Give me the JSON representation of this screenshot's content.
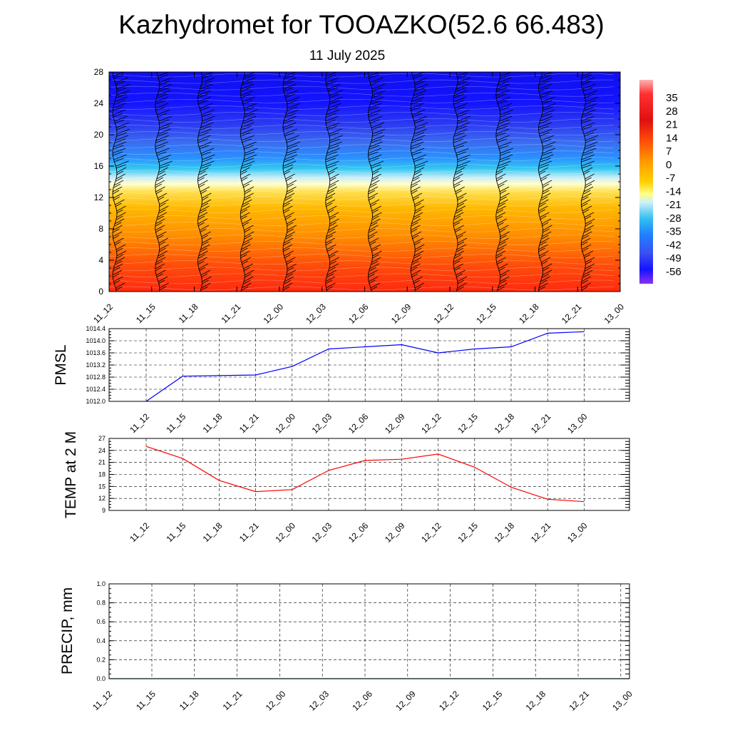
{
  "title": "Kazhydromet for TOOAZKO(52.6 66.483)",
  "subtitle": "11 July 2025",
  "time_labels": [
    "11_12",
    "11_15",
    "11_18",
    "11_21",
    "12_00",
    "12_03",
    "12_06",
    "12_09",
    "12_12",
    "12_15",
    "12_18",
    "12_21",
    "13_00"
  ],
  "chart_data": [
    {
      "type": "heatmap",
      "title": "",
      "ylim": [
        0,
        28
      ],
      "yticks": [
        "0",
        "4",
        "8",
        "12",
        "16",
        "20",
        "24",
        "28"
      ],
      "x_labels": [
        "11_12",
        "11_15",
        "11_18",
        "11_21",
        "12_00",
        "12_03",
        "12_06",
        "12_09",
        "12_12",
        "12_15",
        "12_18",
        "12_21",
        "13_00"
      ],
      "colorbar": {
        "labels": [
          "35",
          "28",
          "21",
          "14",
          "7",
          "0",
          "-7",
          "-14",
          "-21",
          "-28",
          "-35",
          "-42",
          "-49",
          "-56"
        ],
        "range": [
          -60,
          38
        ]
      },
      "temperature_profile": {
        "levels": [
          0,
          4,
          8,
          12,
          13.5,
          16,
          20,
          24,
          28
        ],
        "values": [
          28,
          20,
          10,
          2,
          -14,
          -35,
          -50,
          -56,
          -58
        ]
      },
      "wind_barbs": "shown"
    },
    {
      "type": "line",
      "ylabel": "PMSL",
      "ylim": [
        1012.0,
        1014.4
      ],
      "yticks": [
        "1012.0",
        "1012.4",
        "1012.8",
        "1013.2",
        "1013.6",
        "1014.0",
        "1014.4"
      ],
      "series": [
        {
          "color": "#0000ff",
          "values": [
            1012.0,
            1012.83,
            1012.85,
            1012.87,
            1013.15,
            1013.73,
            1013.8,
            1013.87,
            1013.6,
            1013.73,
            1013.8,
            1014.25,
            1014.3
          ]
        }
      ]
    },
    {
      "type": "line",
      "ylabel": "TEMP at 2 M",
      "ylim": [
        9,
        27
      ],
      "yticks": [
        "9",
        "12",
        "15",
        "18",
        "21",
        "24",
        "27"
      ],
      "series": [
        {
          "color": "#ff0000",
          "values": [
            25.0,
            22.0,
            16.5,
            13.7,
            14.2,
            19.0,
            21.5,
            21.8,
            23.1,
            19.8,
            14.8,
            11.8,
            11.2
          ]
        }
      ]
    },
    {
      "type": "line",
      "ylabel": "PRECIP, mm",
      "ylim": [
        0.0,
        1.0
      ],
      "yticks": [
        "0.0",
        "0.2",
        "0.4",
        "0.6",
        "0.8",
        "1.0"
      ],
      "series": [
        {
          "color": "#006400",
          "values": [
            0,
            0,
            0,
            0,
            0,
            0,
            0,
            0,
            0,
            0,
            0,
            0,
            0
          ]
        }
      ]
    }
  ]
}
